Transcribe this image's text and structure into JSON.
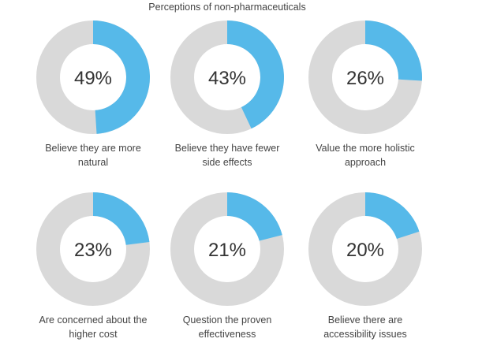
{
  "chart_data": {
    "type": "donut",
    "title": "Perceptions of non-pharmaceuticals",
    "colors": {
      "value": "#56b9e9",
      "remainder": "#d9d9d9"
    },
    "items": [
      {
        "label_lines": [
          "Believe they are more",
          "natural"
        ],
        "value": 49,
        "display": "49%"
      },
      {
        "label_lines": [
          "Believe they have fewer",
          "side effects"
        ],
        "value": 43,
        "display": "43%"
      },
      {
        "label_lines": [
          "Value the more holistic",
          "approach"
        ],
        "value": 26,
        "display": "26%"
      },
      {
        "label_lines": [
          "Are concerned about the",
          "higher cost"
        ],
        "value": 23,
        "display": "23%"
      },
      {
        "label_lines": [
          "Question the proven",
          "effectiveness"
        ],
        "value": 21,
        "display": "21%"
      },
      {
        "label_lines": [
          "Believe there are",
          "accessibility issues"
        ],
        "value": 20,
        "display": "20%"
      }
    ]
  }
}
